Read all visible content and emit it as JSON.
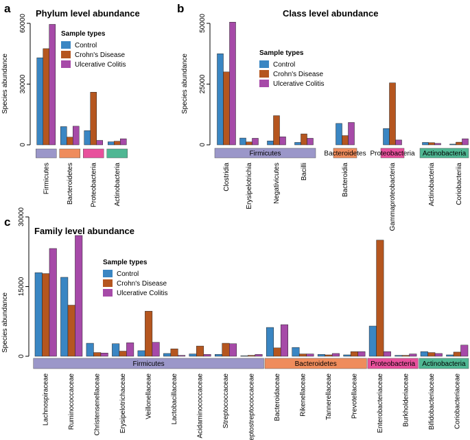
{
  "legend": {
    "title": "Sample types",
    "series": [
      "Control",
      "Crohn's Disease",
      "Ulcerative Colitis"
    ],
    "colors": [
      "#3a86c3",
      "#b5561f",
      "#a64aa8"
    ]
  },
  "chart_data": [
    {
      "id": "a",
      "panel_label": "a",
      "type": "bar",
      "title": "Phylum level abundance",
      "ylabel": "Species abundance",
      "ylim": [
        0,
        60000
      ],
      "yticks": [
        0,
        30000,
        60000
      ],
      "categories": [
        "Firmicutes",
        "Bacteroidetes",
        "Proteobacteria",
        "Actinobacteria"
      ],
      "series": [
        {
          "name": "Control",
          "values": [
            43000,
            9000,
            7000,
            1500
          ]
        },
        {
          "name": "Crohn's Disease",
          "values": [
            47500,
            3800,
            26000,
            1800
          ]
        },
        {
          "name": "Ulcerative Colitis",
          "values": [
            59500,
            9200,
            2200,
            3000
          ]
        }
      ],
      "groups": [
        {
          "label": "",
          "color": "#9b97c9",
          "span": [
            0,
            0
          ]
        },
        {
          "label": "",
          "color": "#ef8c5c",
          "span": [
            1,
            1
          ]
        },
        {
          "label": "",
          "color": "#e8509c",
          "span": [
            2,
            2
          ]
        },
        {
          "label": "",
          "color": "#4fb793",
          "span": [
            3,
            3
          ]
        }
      ]
    },
    {
      "id": "b",
      "panel_label": "b",
      "type": "bar",
      "title": "Class level abundance",
      "ylabel": "Species abundance",
      "ylim": [
        0,
        50000
      ],
      "yticks": [
        0,
        25000,
        50000
      ],
      "categories": [
        "Clostridia",
        "Erysipelotrichia",
        "Negativicutes",
        "Bacilli",
        "Bacteroidia",
        "Gammaproteobacteria",
        "Actinobacteria",
        "Coriobacteriia"
      ],
      "series": [
        {
          "name": "Control",
          "values": [
            37500,
            2800,
            1600,
            1000,
            8800,
            6700,
            1000,
            300
          ]
        },
        {
          "name": "Crohn's Disease",
          "values": [
            30000,
            1200,
            12000,
            4500,
            3800,
            25500,
            900,
            1100
          ]
        },
        {
          "name": "Ulcerative Colitis",
          "values": [
            50500,
            2700,
            3300,
            2700,
            9200,
            2000,
            600,
            2500
          ]
        }
      ],
      "groups": [
        {
          "label": "Firmicutes",
          "color": "#9b97c9",
          "span": [
            0,
            3
          ]
        },
        {
          "label": "Bacteroidetes",
          "color": "#ef8c5c",
          "span": [
            4,
            4
          ]
        },
        {
          "label": "Proteobacteria",
          "color": "#e8509c",
          "span": [
            5,
            5
          ]
        },
        {
          "label": "Actinobacteria",
          "color": "#4fb793",
          "span": [
            6,
            7
          ]
        }
      ]
    },
    {
      "id": "c",
      "panel_label": "c",
      "type": "bar",
      "title": "Family level abundance",
      "ylabel": "Species abundance",
      "ylim": [
        0,
        30000
      ],
      "yticks": [
        0,
        15000,
        30000
      ],
      "categories": [
        "Lachnospiraceae",
        "Ruminococcaceae",
        "Christensenellaceae",
        "Erysipelotrichaceae",
        "Veillonellaceae",
        "Lactobacillaceae",
        "Acidaminococcaceae",
        "Streptococcaceae",
        "Peptostreptococcaceae",
        "Bacteroidaceae",
        "Rikenellaceae",
        "Tannerellaceae",
        "Prevotellaceae",
        "Enterobacteriaceae",
        "Burkholderiaceae",
        "Bifidobacteriaceae",
        "Coriobacteriaceae"
      ],
      "series": [
        {
          "name": "Control",
          "values": [
            18000,
            17000,
            2800,
            2700,
            1200,
            600,
            500,
            400,
            100,
            6200,
            1900,
            400,
            300,
            6500,
            200,
            1000,
            300
          ]
        },
        {
          "name": "Crohn's Disease",
          "values": [
            17800,
            11000,
            800,
            1100,
            9700,
            1600,
            2200,
            2800,
            200,
            1800,
            500,
            300,
            1000,
            25000,
            200,
            800,
            900
          ]
        },
        {
          "name": "Ulcerative Colitis",
          "values": [
            23200,
            26000,
            700,
            2900,
            3000,
            200,
            400,
            2700,
            400,
            6800,
            500,
            600,
            1000,
            1000,
            500,
            600,
            2400
          ]
        }
      ],
      "groups": [
        {
          "label": "Firmicutes",
          "color": "#9b97c9",
          "span": [
            0,
            8
          ]
        },
        {
          "label": "Bacteroidetes",
          "color": "#ef8c5c",
          "span": [
            9,
            12
          ]
        },
        {
          "label": "Proteobacteria",
          "color": "#e8509c",
          "span": [
            13,
            14
          ]
        },
        {
          "label": "Actinobacteria",
          "color": "#4fb793",
          "span": [
            15,
            16
          ]
        }
      ]
    }
  ]
}
